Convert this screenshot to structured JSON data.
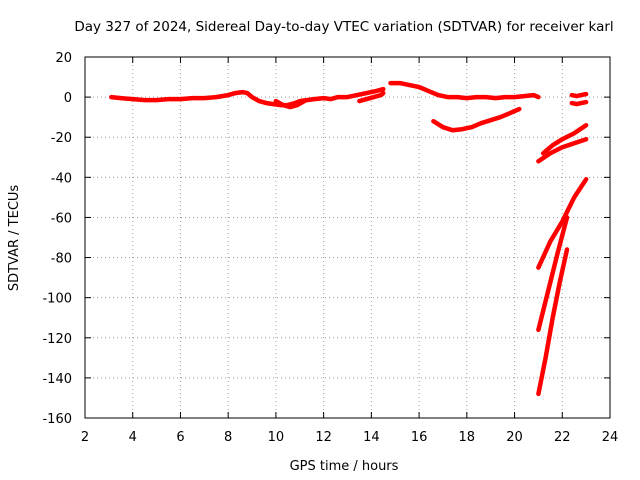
{
  "chart_data": {
    "type": "line",
    "title": "Day 327 of 2024, Sidereal Day-to-day VTEC variation (SDTVAR) for receiver karl",
    "xlabel": "GPS time / hours",
    "ylabel": "SDTVAR / TECUs",
    "xlim": [
      2,
      24
    ],
    "ylim": [
      -160,
      20
    ],
    "xticks": [
      2,
      4,
      6,
      8,
      10,
      12,
      14,
      16,
      18,
      20,
      22,
      24
    ],
    "yticks": [
      -160,
      -140,
      -120,
      -100,
      -80,
      -60,
      -40,
      -20,
      0,
      20
    ],
    "grid": true,
    "legend": "none",
    "color": "#ff0000",
    "series": [
      {
        "x": [
          3.1,
          3.5,
          4.0,
          4.5,
          5.0,
          5.5,
          6.0,
          6.5,
          7.0,
          7.5,
          8.0,
          8.3,
          8.6,
          8.8,
          9.0,
          9.3,
          9.6,
          9.9,
          10.2,
          10.5,
          10.8,
          11.0,
          11.3,
          11.6,
          12.0,
          12.3,
          12.6,
          13.0,
          13.4,
          13.8,
          14.2,
          14.5
        ],
        "y": [
          0,
          -0.5,
          -1,
          -1.5,
          -1.5,
          -1,
          -1,
          -0.5,
          -0.5,
          0,
          1,
          2,
          2.5,
          2,
          0,
          -2,
          -3,
          -3.5,
          -4,
          -4,
          -3,
          -2,
          -1.5,
          -1,
          -0.5,
          -1,
          0,
          0,
          1,
          2,
          3,
          4
        ]
      },
      {
        "x": [
          10.0,
          10.3,
          10.6,
          10.9,
          11.2
        ],
        "y": [
          -2,
          -4,
          -5,
          -4,
          -2
        ]
      },
      {
        "x": [
          13.5,
          13.8,
          14.1,
          14.4,
          14.5
        ],
        "y": [
          -2,
          -1,
          0,
          1,
          2
        ]
      },
      {
        "x": [
          14.8,
          15.2,
          15.6,
          16.0,
          16.4,
          16.8,
          17.2,
          17.6,
          18.0,
          18.4,
          18.8,
          19.2,
          19.6,
          20.0,
          20.4,
          20.8,
          21.0
        ],
        "y": [
          7,
          7,
          6,
          5,
          3,
          1,
          0,
          0,
          -0.5,
          0,
          0,
          -0.5,
          0,
          0,
          0.5,
          1,
          0
        ]
      },
      {
        "x": [
          16.6,
          17.0,
          17.4,
          17.8,
          18.2,
          18.6,
          19.0,
          19.4,
          19.8,
          20.2
        ],
        "y": [
          -12,
          -15,
          -16.5,
          -16,
          -15,
          -13,
          -11.5,
          -10,
          -8,
          -6
        ]
      },
      {
        "x": [
          21.0,
          21.5,
          22.0,
          22.5,
          23.0
        ],
        "y": [
          -32,
          -28,
          -25,
          -23,
          -21
        ]
      },
      {
        "x": [
          21.2,
          21.6,
          22.0,
          22.5,
          23.0
        ],
        "y": [
          -28,
          -24,
          -21,
          -18,
          -14
        ]
      },
      {
        "x": [
          21.0,
          21.5,
          22.0,
          22.5,
          23.0
        ],
        "y": [
          -85,
          -72,
          -62,
          -50,
          -41
        ]
      },
      {
        "x": [
          21.0,
          21.4,
          21.8,
          22.2
        ],
        "y": [
          -116,
          -97,
          -78,
          -60
        ]
      },
      {
        "x": [
          21.0,
          21.3,
          21.6,
          21.9,
          22.2
        ],
        "y": [
          -148,
          -130,
          -110,
          -92,
          -76
        ]
      },
      {
        "x": [
          22.4,
          22.6,
          22.8,
          23.0
        ],
        "y": [
          -3,
          -3.5,
          -3,
          -2.5
        ]
      },
      {
        "x": [
          22.4,
          22.6,
          22.8,
          23.0
        ],
        "y": [
          1,
          0.5,
          1,
          1.5
        ]
      }
    ]
  }
}
